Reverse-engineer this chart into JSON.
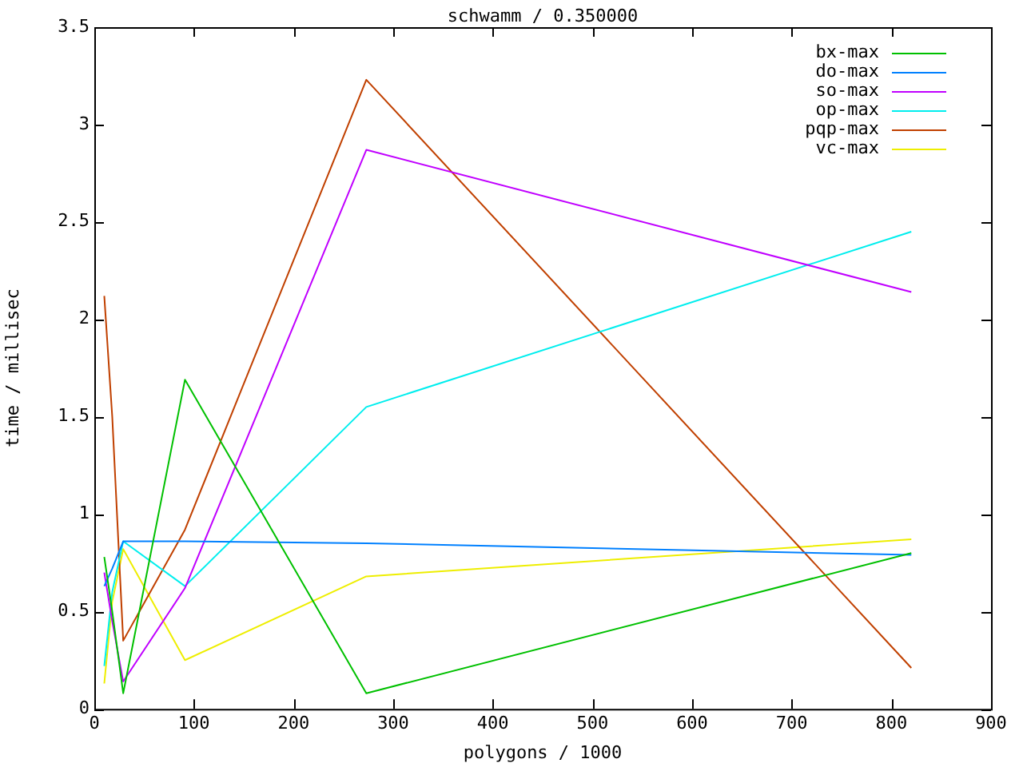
{
  "chart_data": {
    "type": "line",
    "title": "schwamm / 0.350000",
    "xlabel": "polygons / 1000",
    "ylabel": "time / millisec",
    "x": [
      10,
      18,
      29,
      91,
      273,
      820
    ],
    "series": [
      {
        "name": "bx-max",
        "color": "#00c000",
        "values": [
          0.78,
          0.5,
          0.08,
          1.69,
          0.08,
          0.8
        ]
      },
      {
        "name": "do-max",
        "color": "#0080ff",
        "values": [
          0.63,
          0.72,
          0.86,
          0.86,
          0.85,
          0.79
        ]
      },
      {
        "name": "so-max",
        "color": "#c000ff",
        "values": [
          0.7,
          0.45,
          0.14,
          0.62,
          2.87,
          2.14
        ]
      },
      {
        "name": "op-max",
        "color": "#00eeee",
        "values": [
          0.22,
          0.6,
          0.86,
          0.63,
          1.55,
          2.45
        ]
      },
      {
        "name": "pqp-max",
        "color": "#c04000",
        "values": [
          2.12,
          1.5,
          0.35,
          0.92,
          3.23,
          0.21
        ]
      },
      {
        "name": "vc-max",
        "color": "#eeee00",
        "values": [
          0.13,
          0.55,
          0.82,
          0.25,
          0.68,
          0.87
        ]
      }
    ],
    "xlim": [
      0,
      900
    ],
    "xticks": [
      0,
      100,
      200,
      300,
      400,
      500,
      600,
      700,
      800,
      900
    ],
    "ylim": [
      0,
      3.5
    ],
    "yticks": [
      0,
      0.5,
      1,
      1.5,
      2,
      2.5,
      3,
      3.5
    ],
    "legend": "top right",
    "marker": "none",
    "line_style": "solid"
  }
}
